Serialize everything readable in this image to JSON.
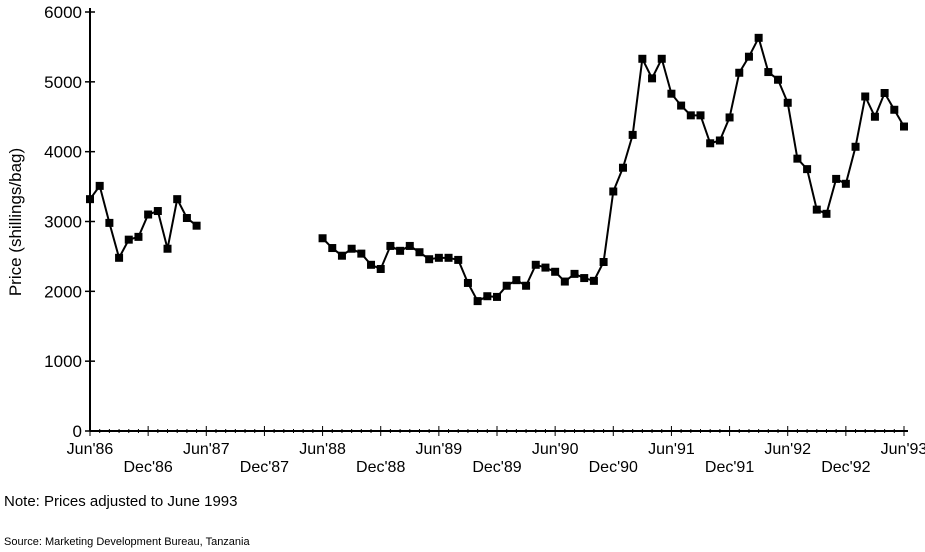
{
  "chart_data": {
    "type": "line",
    "title": "",
    "xlabel": "",
    "ylabel": "Price (shillings/bag)",
    "ylim": [
      0,
      6000
    ],
    "yticks": [
      0,
      1000,
      2000,
      3000,
      4000,
      5000,
      6000
    ],
    "xrange": [
      "1986-06",
      "1993-06"
    ],
    "xtick_labels_upper": [
      "Jun'86",
      "Jun'87",
      "Jun'88",
      "Jun'89",
      "Jun'90",
      "Jun'91",
      "Jun'92",
      "Jun'93"
    ],
    "xtick_labels_lower": [
      "Dec'86",
      "Dec'87",
      "Dec'88",
      "Dec'89",
      "Dec'90",
      "Dec'91",
      "Dec'92"
    ],
    "grid": false,
    "marker": "square",
    "color": "#000000",
    "segments": [
      {
        "start": "1986-06",
        "values": [
          3320,
          3510,
          2980,
          2480,
          2740,
          2780,
          3100,
          3150,
          2610,
          3320,
          3050,
          2940
        ]
      },
      {
        "start": "1988-06",
        "values": [
          2760,
          2620,
          2510,
          2610,
          2540,
          2380,
          2320,
          2650,
          2580,
          2650,
          2560,
          2460,
          2480,
          2480,
          2450,
          2120,
          1860,
          1930,
          1920,
          2080,
          2160,
          2080,
          2380,
          2340,
          2280,
          2140,
          2250,
          2190,
          2150,
          2420,
          3430,
          3770,
          4240,
          5330,
          5050,
          5330,
          4830,
          4660,
          4520,
          4520,
          4120,
          4160,
          4490,
          5130,
          5360,
          5630,
          5140,
          5030,
          4700,
          3900,
          3750,
          3170,
          3110,
          3610,
          3540,
          4070,
          4790,
          4500,
          4840,
          4600,
          4360
        ]
      }
    ]
  },
  "note": "Note:  Prices adjusted to June 1993",
  "source": "Source:  Marketing Development Bureau, Tanzania"
}
